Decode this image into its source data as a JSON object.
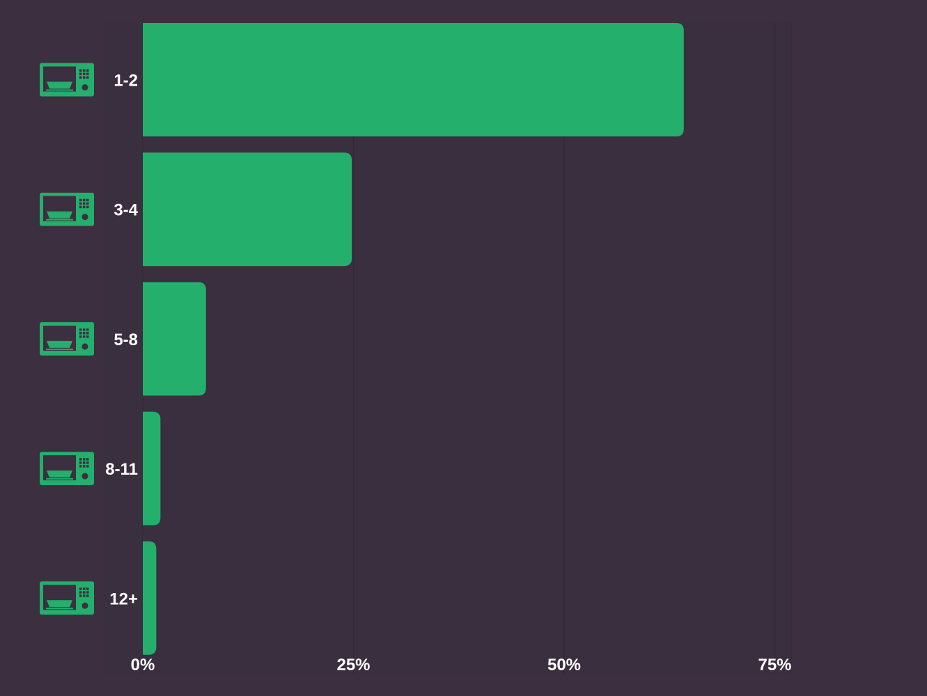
{
  "chart_data": {
    "type": "bar",
    "orientation": "horizontal",
    "categories": [
      "1-2",
      "3-4",
      "5-8",
      "8-11",
      "12+"
    ],
    "values": [
      64.2,
      24.8,
      7.5,
      2.1,
      1.6
    ],
    "value_unit": "%",
    "xlim": [
      0,
      75
    ],
    "x_ticks": [
      {
        "value": 0,
        "label": "0%"
      },
      {
        "value": 25,
        "label": "25%"
      },
      {
        "value": 50,
        "label": "50%"
      },
      {
        "value": 75,
        "label": "75%"
      }
    ],
    "title": "",
    "xlabel": "",
    "ylabel": "",
    "grid": true,
    "legend": "none",
    "category_icon": "microwave-icon"
  },
  "colors": {
    "background": "#3b2f40",
    "plot_background": "#3a2f3f",
    "bar": "#24af6c",
    "icon": "#24af6c",
    "gridline": "#332a37",
    "text": "#ffffff"
  }
}
